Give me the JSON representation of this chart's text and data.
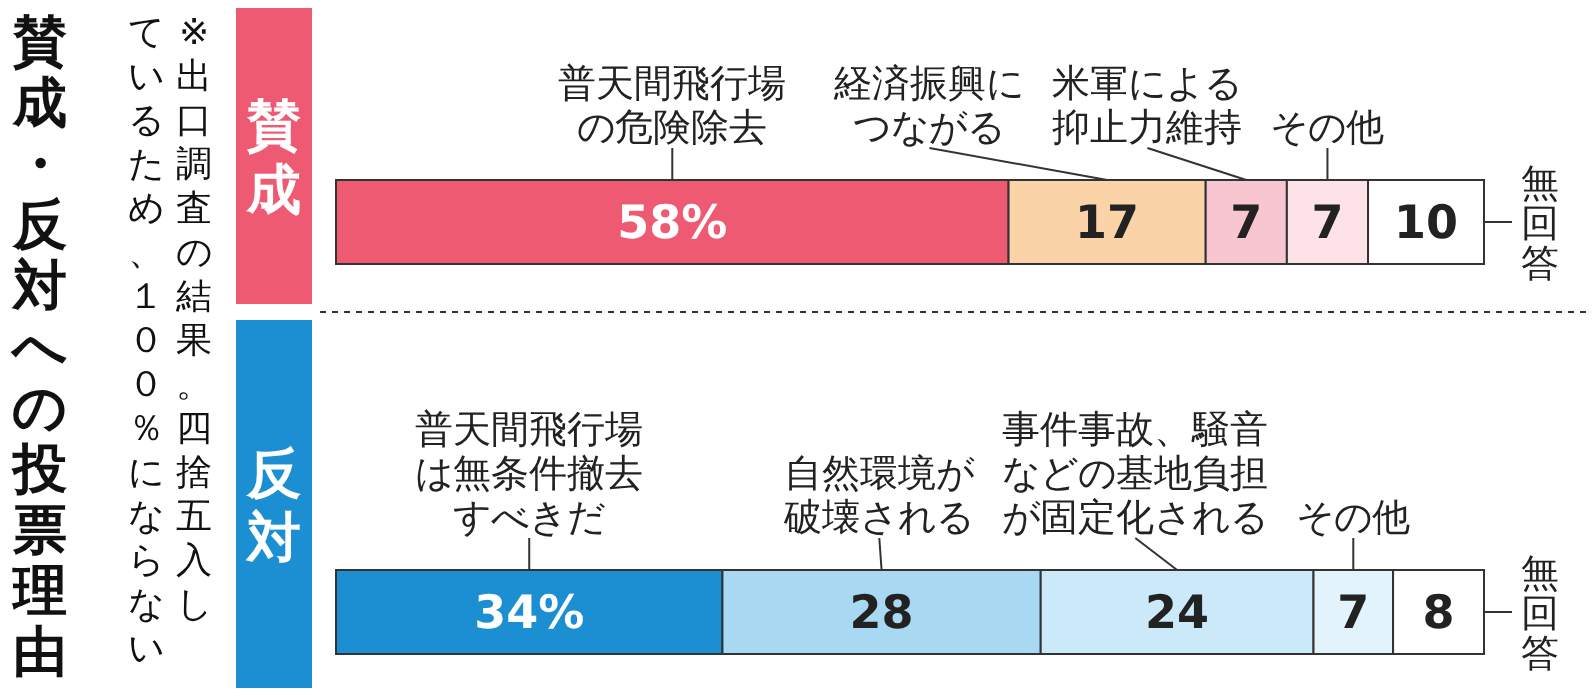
{
  "chart_data": [
    {
      "type": "bar",
      "orientation": "horizontal",
      "stacked": true,
      "title": "賛成・反対への投票理由",
      "annotations": [
        "※出口調査の結果。四捨五入し",
        "ているため、１００％にならない"
      ],
      "categories": [
        "賛成"
      ],
      "series": [
        {
          "name": "普天間飛行場の危険除去",
          "color": "#ee5a72",
          "values": [
            58
          ],
          "value_labels": [
            "58%"
          ]
        },
        {
          "name": "経済振興につながる",
          "color": "#fbd3a8",
          "values": [
            17
          ],
          "value_labels": [
            "17"
          ]
        },
        {
          "name": "米軍による抑止力維持",
          "color": "#f8c6d0",
          "values": [
            7
          ],
          "value_labels": [
            "7"
          ]
        },
        {
          "name": "その他",
          "color": "#fde3e8",
          "values": [
            7
          ],
          "value_labels": [
            "7"
          ]
        },
        {
          "name": "無回答",
          "color": "#ffffff",
          "values": [
            10
          ],
          "value_labels": [
            "10"
          ]
        }
      ]
    },
    {
      "type": "bar",
      "orientation": "horizontal",
      "stacked": true,
      "categories": [
        "反対"
      ],
      "series": [
        {
          "name": "普天間飛行場は無条件撤去すべきだ",
          "color": "#1b8fd2",
          "values": [
            34
          ],
          "value_labels": [
            "34%"
          ]
        },
        {
          "name": "自然環境が破壊される",
          "color": "#a9d9f2",
          "values": [
            28
          ],
          "value_labels": [
            "28"
          ]
        },
        {
          "name": "事件事故、騒音などの基地負担が固定化される",
          "color": "#cbe9f8",
          "values": [
            24
          ],
          "value_labels": [
            "24"
          ]
        },
        {
          "name": "その他",
          "color": "#e3f3fb",
          "values": [
            7
          ],
          "value_labels": [
            "7"
          ]
        },
        {
          "name": "無回答",
          "color": "#ffffff",
          "values": [
            8
          ],
          "value_labels": [
            "8"
          ]
        }
      ]
    }
  ]
}
